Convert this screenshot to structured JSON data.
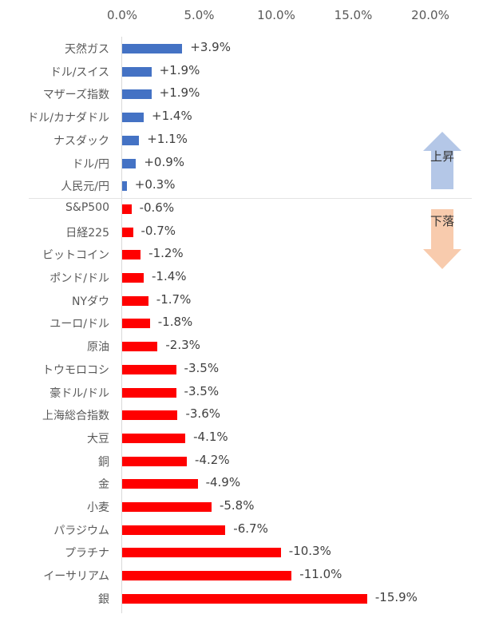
{
  "chart_data": {
    "type": "bar",
    "orientation": "horizontal",
    "title": "",
    "xlabel": "",
    "ylabel": "",
    "xlim": [
      0,
      20
    ],
    "x_ticks": [
      "0.0%",
      "5.0%",
      "10.0%",
      "15.0%",
      "20.0%"
    ],
    "grid": false,
    "categories": [
      "天然ガス",
      "ドル/スイス",
      "マザーズ指数",
      "ドル/カナダドル",
      "ナスダック",
      "ドル/円",
      "人民元/円",
      "S&P500",
      "日経225",
      "ビットコイン",
      "ポンド/ドル",
      "NYダウ",
      "ユーロ/ドル",
      "原油",
      "トウモロコシ",
      "豪ドル/ドル",
      "上海総合指数",
      "大豆",
      "銅",
      "金",
      "小麦",
      "パラジウム",
      "プラチナ",
      "イーサリアム",
      "銀"
    ],
    "values": [
      3.9,
      1.9,
      1.9,
      1.4,
      1.1,
      0.9,
      0.3,
      -0.6,
      -0.7,
      -1.2,
      -1.4,
      -1.7,
      -1.8,
      -2.3,
      -3.5,
      -3.5,
      -3.6,
      -4.1,
      -4.2,
      -4.9,
      -5.8,
      -6.7,
      -10.3,
      -11.0,
      -15.9
    ],
    "value_labels": [
      "+3.9%",
      "+1.9%",
      "+1.9%",
      "+1.4%",
      "+1.1%",
      "+0.9%",
      "+0.3%",
      "-0.6%",
      "-0.7%",
      "-1.2%",
      "-1.4%",
      "-1.7%",
      "-1.8%",
      "-2.3%",
      "-3.5%",
      "-3.5%",
      "-3.6%",
      "-4.1%",
      "-4.2%",
      "-4.9%",
      "-5.8%",
      "-6.7%",
      "-10.3%",
      "-11.0%",
      "-15.9%"
    ],
    "note": "Bars plotted by absolute magnitude; rises in blue, falls in red",
    "colors": {
      "rise": "#4472c4",
      "fall": "#ff0000"
    },
    "annotations": [
      {
        "text": "上昇",
        "shape": "up-arrow",
        "color": "#b4c7e7"
      },
      {
        "text": "下落",
        "shape": "down-arrow",
        "color": "#f8cbad"
      }
    ]
  }
}
